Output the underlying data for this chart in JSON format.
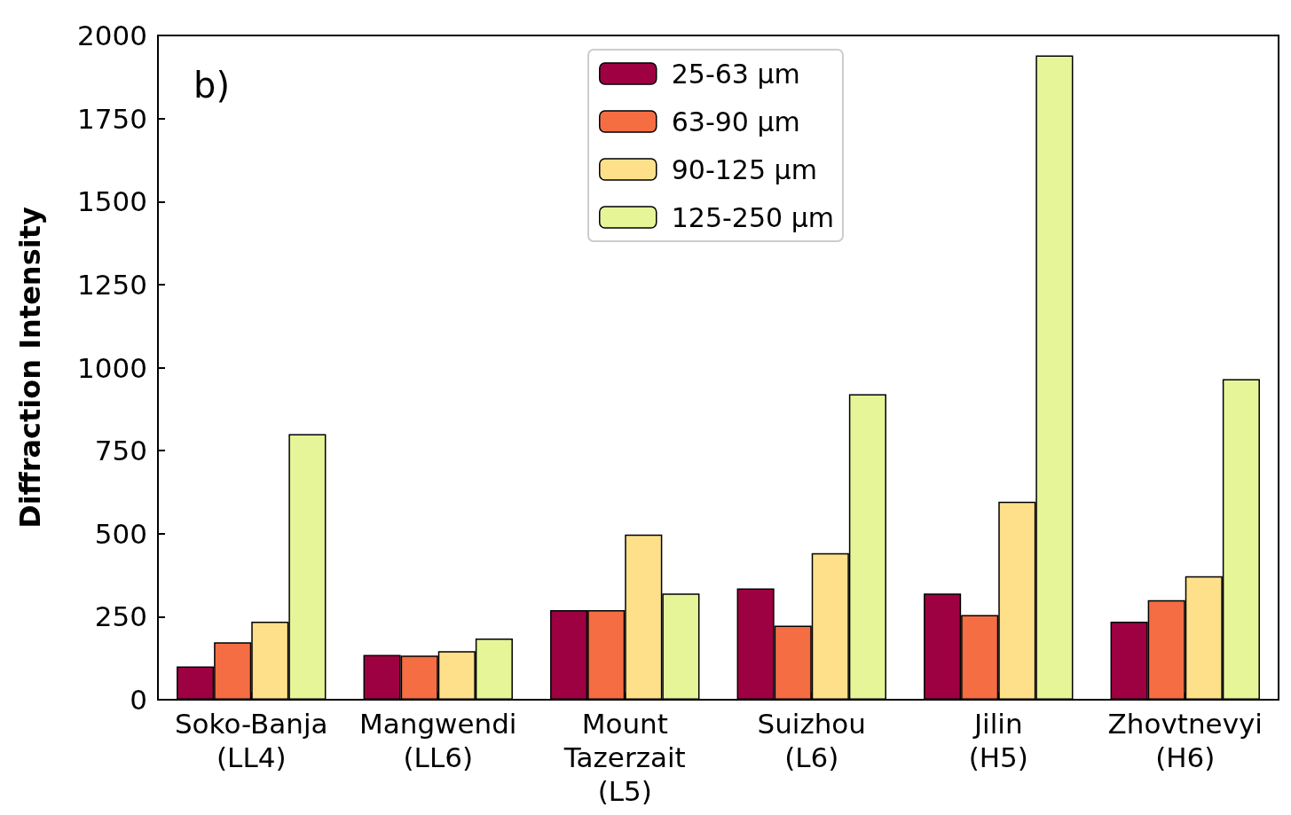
{
  "chart_data": {
    "type": "bar",
    "categories": [
      "Soko-Banja\n(LL4)",
      "Mangwendi\n(LL6)",
      "Mount\nTazerzait\n(L5)",
      "Suizhou\n(L6)",
      "Jilin\n(H5)",
      "Zhovtnevyi\n(H6)"
    ],
    "series": [
      {
        "name": "25-63 μm",
        "color": "#9e0142",
        "values": [
          100,
          135,
          270,
          335,
          320,
          235
        ]
      },
      {
        "name": "63-90 μm",
        "color": "#f46d43",
        "values": [
          173,
          133,
          270,
          223,
          255,
          300
        ]
      },
      {
        "name": "90-125 μm",
        "color": "#fee08b",
        "values": [
          235,
          146,
          497,
          441,
          596,
          372
        ]
      },
      {
        "name": "125-250 μm",
        "color": "#e6f598",
        "values": [
          800,
          184,
          320,
          920,
          1940,
          965
        ]
      }
    ],
    "ylabel": "Diffraction Intensity",
    "ylim": [
      0,
      2000
    ],
    "yticks": [
      0,
      250,
      500,
      750,
      1000,
      1250,
      1500,
      1750,
      2000
    ],
    "annotations": [
      "b)"
    ],
    "grid": false,
    "legend": "top"
  }
}
